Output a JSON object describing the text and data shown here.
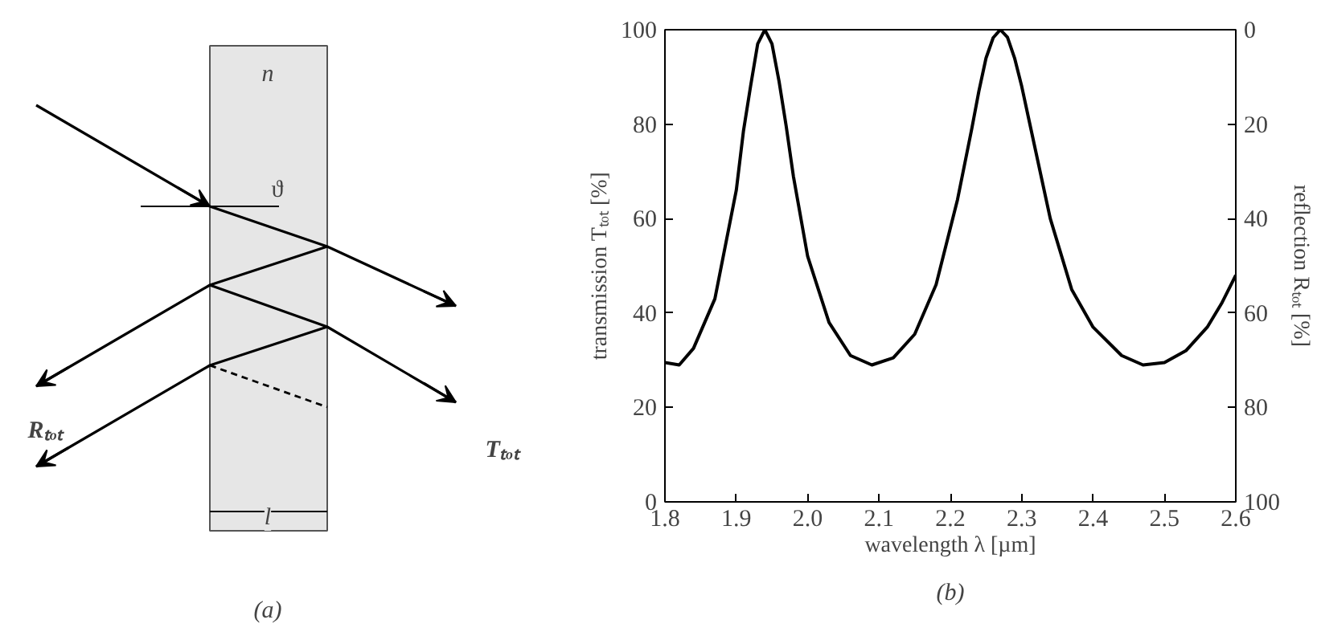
{
  "chart_data": [
    {
      "type": "other",
      "annotations": [
        "n",
        "ϑ",
        "Rₜₒₜ",
        "Tₜₒₜ",
        "l",
        "(a)"
      ]
    },
    {
      "type": "line",
      "xlabel": "wavelength λ [µm]",
      "ylabel": "transmission Tₜₒₜ [%]",
      "y2label": "reflection Rₜₒₜ [%]",
      "annotations": [
        "(b)"
      ],
      "x": [
        1.8,
        1.82,
        1.84,
        1.87,
        1.9,
        1.91,
        1.92,
        1.93,
        1.94,
        1.95,
        1.96,
        1.97,
        1.98,
        2.0,
        2.03,
        2.06,
        2.09,
        2.12,
        2.15,
        2.18,
        2.21,
        2.23,
        2.24,
        2.25,
        2.26,
        2.27,
        2.28,
        2.29,
        2.3,
        2.31,
        2.34,
        2.37,
        2.4,
        2.44,
        2.47,
        2.5,
        2.53,
        2.56,
        2.58,
        2.6
      ],
      "series": [
        {
          "color": "#000000",
          "values": [
            29.5,
            29,
            32.5,
            43,
            66,
            78.5,
            88,
            97,
            100,
            97,
            89,
            79.5,
            69,
            52,
            38,
            31,
            29,
            30.5,
            35.5,
            46,
            64,
            79,
            87,
            94,
            98.3,
            100,
            98.4,
            94,
            88,
            81,
            60,
            45,
            37,
            31,
            29,
            29.5,
            32,
            37,
            42,
            48
          ]
        }
      ],
      "xlim": [
        1.8,
        2.6
      ],
      "xticks": [
        {
          "value": 1.8,
          "label": "1.8"
        },
        {
          "value": 1.9,
          "label": "1.9"
        },
        {
          "value": 2.0,
          "label": "2.0"
        },
        {
          "value": 2.1,
          "label": "2.1"
        },
        {
          "value": 2.2,
          "label": "2.2"
        },
        {
          "value": 2.3,
          "label": "2.3"
        },
        {
          "value": 2.4,
          "label": "2.4"
        },
        {
          "value": 2.5,
          "label": "2.5"
        },
        {
          "value": 2.6,
          "label": "2.6"
        }
      ],
      "ylim": [
        0,
        100
      ],
      "yticks": [
        0,
        20,
        40,
        60,
        80,
        100
      ],
      "y2lim": [
        100,
        0
      ],
      "y2ticks": [
        0,
        20,
        40,
        60,
        80,
        100
      ],
      "grid": false,
      "marker": "none",
      "line_style": "solid"
    }
  ]
}
